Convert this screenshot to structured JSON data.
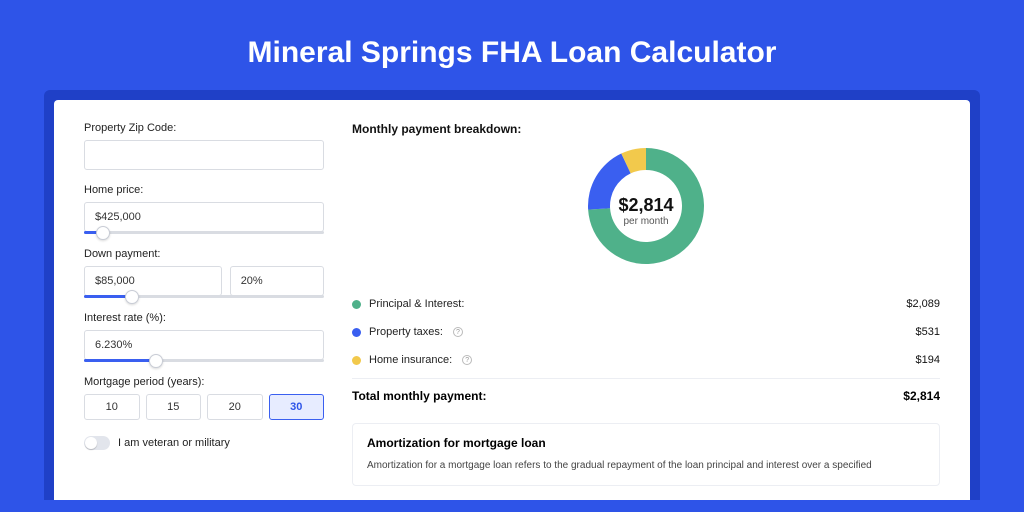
{
  "hero": {
    "title": "Mineral Springs FHA Loan Calculator"
  },
  "colors": {
    "page_bg": "#2e54e8",
    "card_wrap_bg": "#1f40c7",
    "card_bg": "#ffffff",
    "accent": "#3a5ff0",
    "input_border": "#d9dce2"
  },
  "form": {
    "zip": {
      "label": "Property Zip Code:",
      "value": ""
    },
    "price": {
      "label": "Home price:",
      "value": "$425,000",
      "slider_percent": 8
    },
    "down": {
      "label": "Down payment:",
      "value": "$85,000",
      "percent": "20%",
      "slider_percent": 20
    },
    "rate": {
      "label": "Interest rate (%):",
      "value": "6.230%",
      "slider_percent": 30
    },
    "period": {
      "label": "Mortgage period (years):",
      "options": [
        "10",
        "15",
        "20",
        "30"
      ],
      "selected": "30"
    },
    "veteran": {
      "label": "I am veteran or military",
      "checked": false
    }
  },
  "breakdown": {
    "title": "Monthly payment breakdown:",
    "donut": {
      "type": "donut",
      "center_value": "$2,814",
      "center_label": "per month",
      "size": 120,
      "thickness": 22,
      "background": "#ffffff",
      "slices": [
        {
          "label": "Principal & Interest",
          "value": 2089,
          "color": "#4fb18a",
          "percent": 74
        },
        {
          "label": "Property taxes",
          "value": 531,
          "color": "#3a5ff0",
          "percent": 19
        },
        {
          "label": "Home insurance",
          "value": 194,
          "color": "#f2c94c",
          "percent": 7
        }
      ]
    },
    "legend": [
      {
        "label": "Principal & Interest:",
        "value": "$2,089",
        "color": "#4fb18a",
        "has_info": false
      },
      {
        "label": "Property taxes:",
        "value": "$531",
        "color": "#3a5ff0",
        "has_info": true
      },
      {
        "label": "Home insurance:",
        "value": "$194",
        "color": "#f2c94c",
        "has_info": true
      }
    ],
    "total": {
      "label": "Total monthly payment:",
      "value": "$2,814"
    }
  },
  "amortization": {
    "title": "Amortization for mortgage loan",
    "body": "Amortization for a mortgage loan refers to the gradual repayment of the loan principal and interest over a specified"
  }
}
